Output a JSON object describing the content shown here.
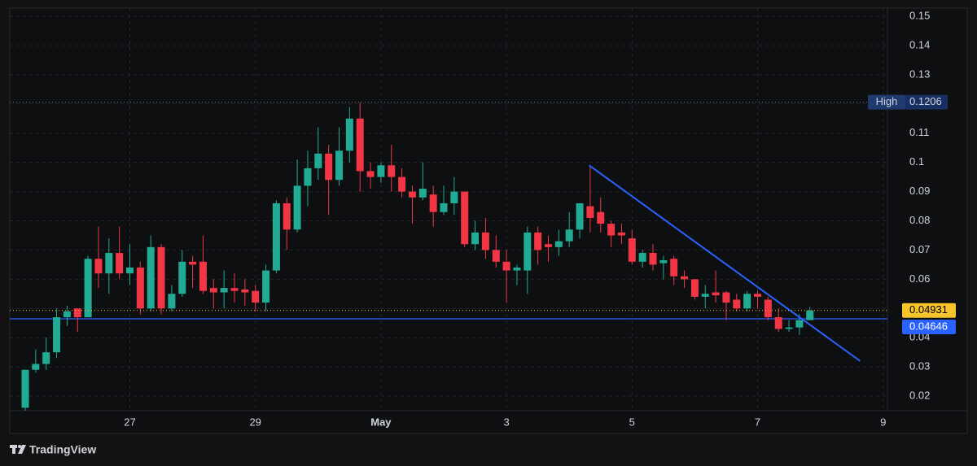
{
  "brand": "TradingView",
  "chart_data": {
    "type": "candlestick",
    "categories": [
      null,
      null,
      null,
      null,
      null,
      null,
      null,
      null,
      null,
      null,
      "27",
      null,
      null,
      null,
      null,
      null,
      null,
      null,
      null,
      null,
      null,
      null,
      "29",
      null,
      null,
      null,
      null,
      null,
      null,
      null,
      null,
      null,
      null,
      null,
      "May",
      null,
      null,
      null,
      null,
      null,
      null,
      null,
      null,
      null,
      null,
      null,
      "3",
      null,
      null,
      null,
      null,
      null,
      null,
      null,
      null,
      null,
      null,
      null,
      "5",
      null,
      null,
      null,
      null,
      null,
      null,
      null,
      null,
      null,
      null,
      null,
      "7",
      null,
      null,
      null,
      null,
      null,
      null,
      null,
      null,
      null,
      null,
      null,
      "9"
    ],
    "open": [
      0.016,
      0.029,
      0.031,
      0.035,
      0.047,
      0.05,
      0.047,
      0.067,
      0.062,
      0.069,
      0.062,
      0.064,
      0.05,
      0.071,
      0.05,
      0.055,
      0.066,
      0.066,
      0.057,
      0.0555,
      0.057,
      0.0565,
      0.056,
      0.052,
      0.063,
      0.086,
      0.077,
      0.092,
      0.098,
      0.103,
      0.094,
      0.104,
      0.115,
      0.097,
      0.095,
      0.099,
      0.095,
      0.09,
      0.088,
      0.089,
      0.083,
      0.086,
      0.09,
      0.072,
      0.076,
      0.07,
      0.066,
      0.063,
      0.063,
      0.076,
      0.072,
      0.071,
      0.073,
      0.077,
      0.085,
      0.083,
      0.079,
      0.076,
      0.074,
      0.066,
      0.069,
      0.0655,
      0.067,
      0.061,
      0.06,
      0.054,
      0.0555,
      0.0555,
      0.053,
      0.05,
      0.055,
      0.053,
      0.047,
      0.043,
      0.0435,
      0.046,
      null,
      null,
      null,
      null,
      null,
      null,
      null
    ],
    "high": [
      0.029,
      0.036,
      0.04,
      0.05,
      0.051,
      0.05,
      0.068,
      0.078,
      0.074,
      0.078,
      0.072,
      0.066,
      0.075,
      0.072,
      0.058,
      0.07,
      0.068,
      0.075,
      0.06,
      0.063,
      0.062,
      0.06,
      0.058,
      0.065,
      0.087,
      0.088,
      0.101,
      0.104,
      0.112,
      0.106,
      0.112,
      0.119,
      0.1206,
      0.1,
      0.1,
      0.106,
      0.098,
      0.092,
      0.1,
      0.092,
      0.092,
      0.095,
      0.09,
      0.08,
      0.081,
      0.075,
      0.07,
      0.065,
      0.078,
      0.078,
      0.075,
      0.077,
      0.083,
      0.086,
      0.099,
      0.088,
      0.08,
      0.079,
      0.077,
      0.07,
      0.072,
      0.068,
      0.068,
      0.063,
      0.06,
      0.058,
      0.063,
      0.056,
      0.055,
      0.056,
      0.056,
      0.054,
      0.05,
      0.046,
      0.048,
      0.0505,
      null,
      null,
      null,
      null,
      null,
      null,
      null
    ],
    "low": [
      0.015,
      0.028,
      0.029,
      0.033,
      0.044,
      0.042,
      0.047,
      0.057,
      0.055,
      0.06,
      0.058,
      0.048,
      0.049,
      0.048,
      0.049,
      0.054,
      0.057,
      0.055,
      0.05,
      0.05,
      0.052,
      0.051,
      0.049,
      0.049,
      0.062,
      0.07,
      0.076,
      0.085,
      0.094,
      0.082,
      0.092,
      0.1,
      0.09,
      0.091,
      0.093,
      0.09,
      0.088,
      0.079,
      0.087,
      0.078,
      0.082,
      0.082,
      0.071,
      0.07,
      0.067,
      0.064,
      0.052,
      0.058,
      0.055,
      0.065,
      0.066,
      0.068,
      0.071,
      0.074,
      0.076,
      0.076,
      0.071,
      0.072,
      0.065,
      0.064,
      0.063,
      0.06,
      0.058,
      0.057,
      0.053,
      0.05,
      0.052,
      0.046,
      0.049,
      0.049,
      0.05,
      0.046,
      0.042,
      0.042,
      0.041,
      0.046,
      null,
      null,
      null,
      null,
      null,
      null,
      null
    ],
    "close": [
      0.029,
      0.031,
      0.035,
      0.047,
      0.049,
      0.047,
      0.067,
      0.062,
      0.069,
      0.062,
      0.064,
      0.05,
      0.071,
      0.05,
      0.055,
      0.066,
      0.065,
      0.056,
      0.0555,
      0.057,
      0.056,
      0.0555,
      0.052,
      0.063,
      0.086,
      0.077,
      0.092,
      0.098,
      0.103,
      0.094,
      0.104,
      0.115,
      0.097,
      0.095,
      0.099,
      0.095,
      0.09,
      0.088,
      0.091,
      0.083,
      0.086,
      0.09,
      0.072,
      0.076,
      0.07,
      0.066,
      0.063,
      0.064,
      0.076,
      0.07,
      0.071,
      0.073,
      0.077,
      0.086,
      0.081,
      0.079,
      0.075,
      0.075,
      0.066,
      0.069,
      0.065,
      0.0665,
      0.061,
      0.06,
      0.054,
      0.055,
      0.0545,
      0.052,
      0.05,
      0.055,
      0.054,
      0.047,
      0.043,
      0.0435,
      0.046,
      0.04931,
      null,
      null,
      null,
      null,
      null,
      null,
      null
    ],
    "up_color": "#22ab94",
    "down_color": "#f23645",
    "ylim": [
      0.015,
      0.1528
    ],
    "yticks": [
      0.02,
      0.03,
      0.04,
      0.05,
      0.06,
      0.07,
      0.08,
      0.09,
      0.1,
      0.11,
      0.12,
      0.13,
      0.14,
      0.15
    ],
    "grid": true,
    "high_marker": {
      "label": "High"
    },
    "price_line": {
      "color": "#f7c52b"
    },
    "hline": {
      "value": 0.04646,
      "color": "#2962ff"
    },
    "trendline": {
      "x": [
        53.9,
        79.8
      ],
      "y": [
        0.099,
        0.032
      ],
      "color": "#2962ff"
    }
  }
}
